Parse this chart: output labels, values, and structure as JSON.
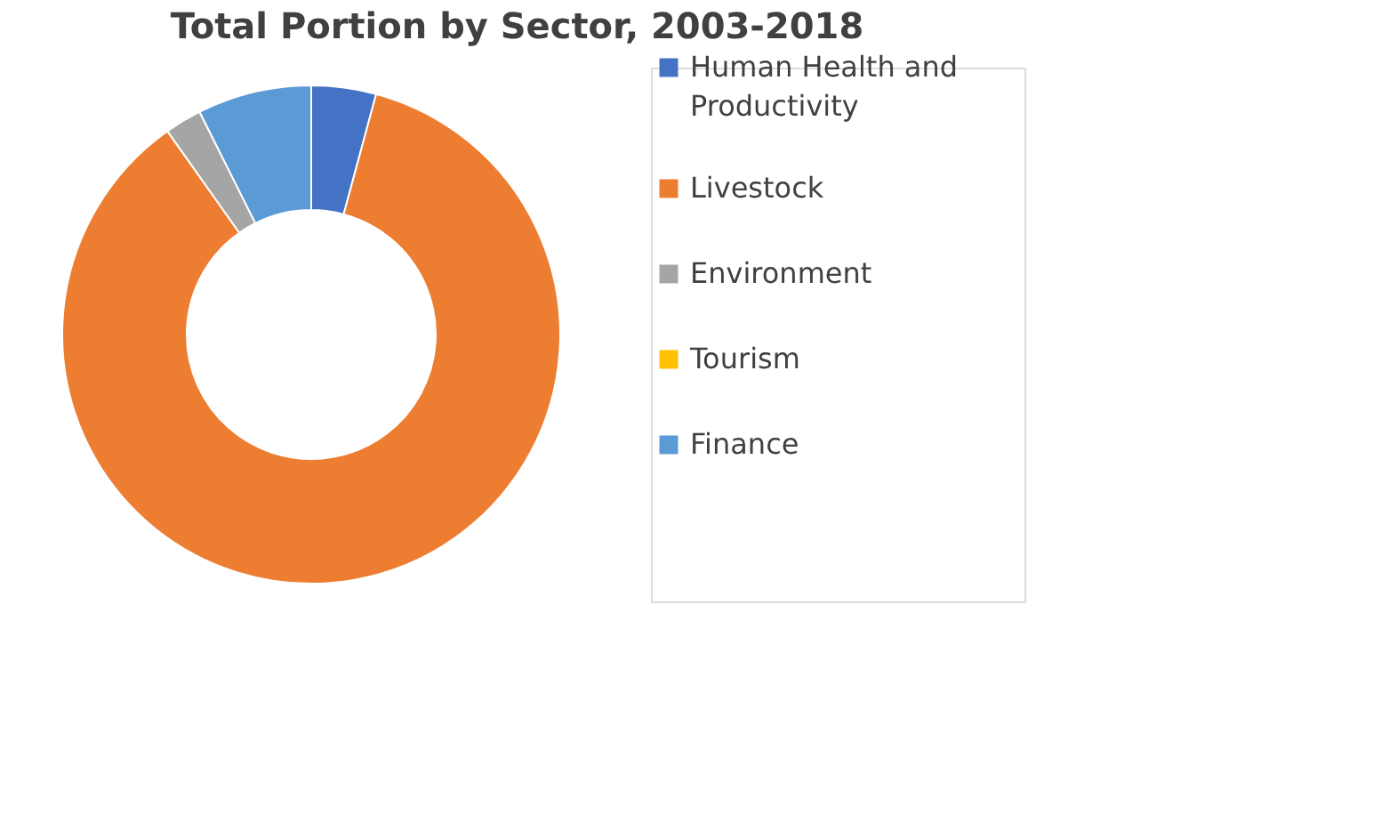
{
  "chart_data": {
    "type": "donut",
    "title": "Total Portion by Sector, 2003-2018",
    "categories": [
      "Human Health and Productivity",
      "Livestock",
      "Environment",
      "Tourism",
      "Finance"
    ],
    "values": [
      4.2,
      86.0,
      2.4,
      0,
      7.4
    ],
    "colors": [
      "#4472c4",
      "#ed7d31",
      "#a5a5a5",
      "#ffc000",
      "#5b9bd5"
    ],
    "legend": "right"
  }
}
